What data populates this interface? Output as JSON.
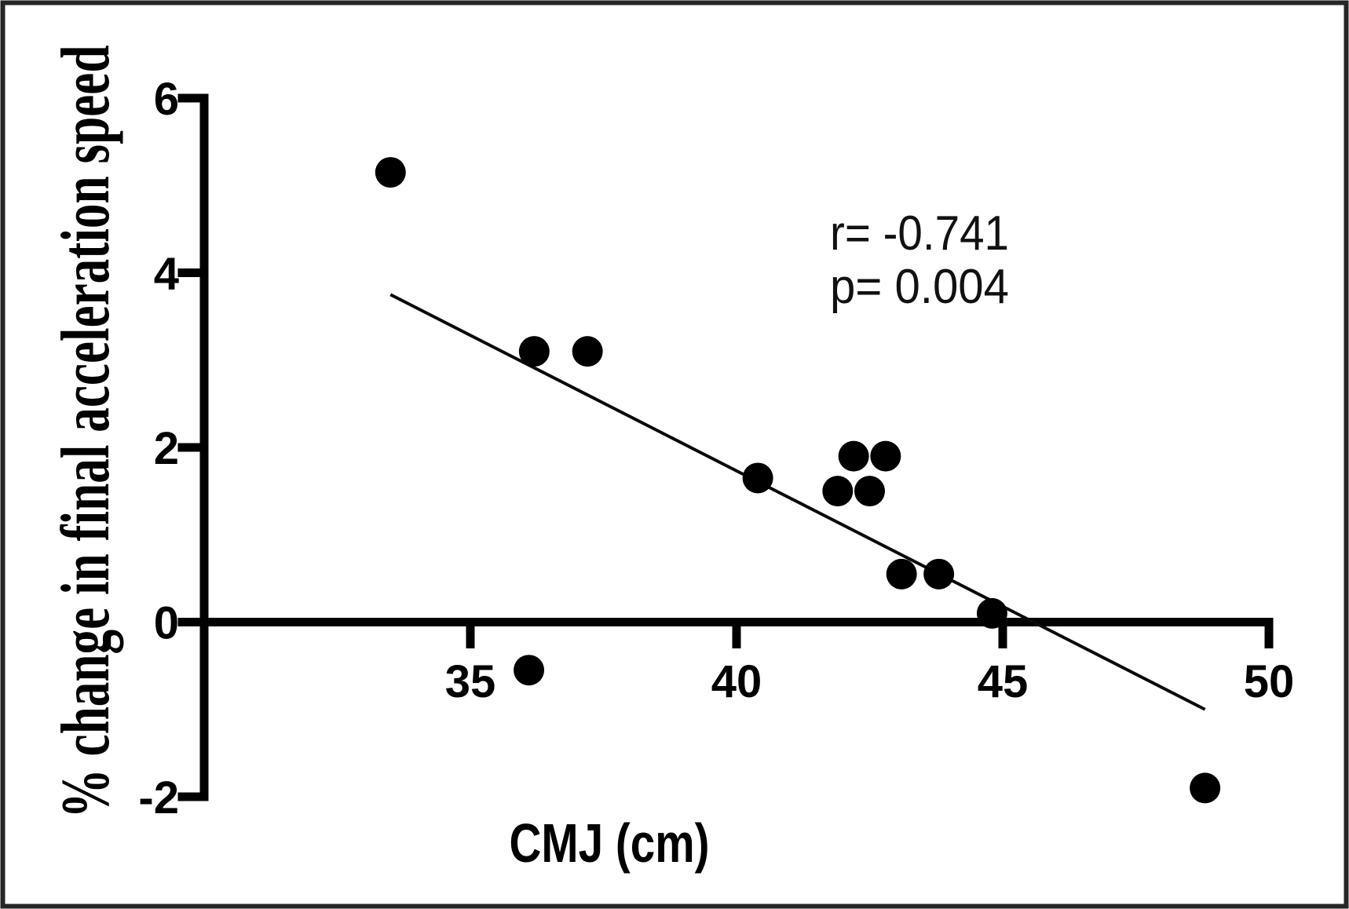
{
  "figure": {
    "background_color": "#ffffff",
    "frame_color": "#262626"
  },
  "chart_data": {
    "type": "scatter",
    "title": "",
    "xlabel": "CMJ (cm)",
    "ylabel": "% change in final acceleration speed",
    "xlim": [
      30,
      50
    ],
    "ylim": [
      -2,
      6
    ],
    "x_ticks": [
      35,
      40,
      45,
      50
    ],
    "y_ticks": [
      -2,
      0,
      2,
      4,
      6
    ],
    "grid": false,
    "legend": "none",
    "marker_color": "#000000",
    "axis_color": "#000000",
    "points": [
      {
        "x": 33.5,
        "y": 5.15
      },
      {
        "x": 36.1,
        "y": -0.55
      },
      {
        "x": 36.2,
        "y": 3.1
      },
      {
        "x": 37.2,
        "y": 3.1
      },
      {
        "x": 40.4,
        "y": 1.65
      },
      {
        "x": 41.9,
        "y": 1.5
      },
      {
        "x": 42.2,
        "y": 1.9
      },
      {
        "x": 42.5,
        "y": 1.5
      },
      {
        "x": 42.8,
        "y": 1.9
      },
      {
        "x": 43.1,
        "y": 0.55
      },
      {
        "x": 43.8,
        "y": 0.55
      },
      {
        "x": 44.8,
        "y": 0.1
      },
      {
        "x": 48.8,
        "y": -1.9
      }
    ],
    "trendline": {
      "x1": 33.5,
      "y1": 3.75,
      "x2": 48.8,
      "y2": -1.0
    },
    "annotation": {
      "lines": [
        "r= -0.741",
        "p= 0.004"
      ],
      "r_value": "-0.741",
      "p_value": "0.004"
    }
  }
}
